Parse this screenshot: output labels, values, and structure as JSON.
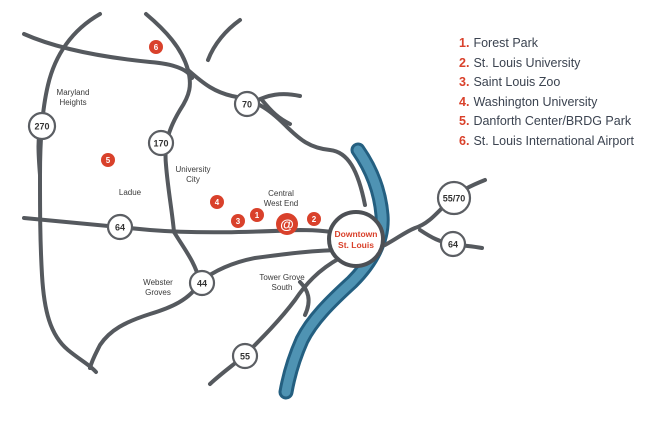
{
  "legend": [
    {
      "number": "1.",
      "label": "Forest Park"
    },
    {
      "number": "2.",
      "label": "St. Louis University"
    },
    {
      "number": "3.",
      "label": "Saint Louis Zoo"
    },
    {
      "number": "4.",
      "label": "Washington University"
    },
    {
      "number": "5.",
      "label": "Danforth Center/BRDG Park"
    },
    {
      "number": "6.",
      "label": "St. Louis International Airport"
    }
  ],
  "areas": {
    "maryland_heights": [
      "Maryland",
      "Heights"
    ],
    "university_city": [
      "University",
      "City"
    ],
    "ladue": "Ladue",
    "central_west_end": [
      "Central",
      "West End"
    ],
    "webster_groves": [
      "Webster",
      "Groves"
    ],
    "tower_grove_south": [
      "Tower Grove",
      "South"
    ]
  },
  "highways": {
    "i270": "270",
    "i170": "170",
    "i70": "70",
    "i64": "64",
    "i44": "44",
    "i55": "55",
    "i55_70": "55/70",
    "i64_east": "64"
  },
  "markers": [
    "1",
    "2",
    "3",
    "4",
    "5",
    "6"
  ],
  "downtown": [
    "Downtown",
    "St. Louis"
  ],
  "center_symbol": "@",
  "colors": {
    "road": "#55595e",
    "river": "#3d7d9c",
    "marker": "#d9412b",
    "legend_text": "#3b4350",
    "shield_border": "#5b5e63"
  }
}
